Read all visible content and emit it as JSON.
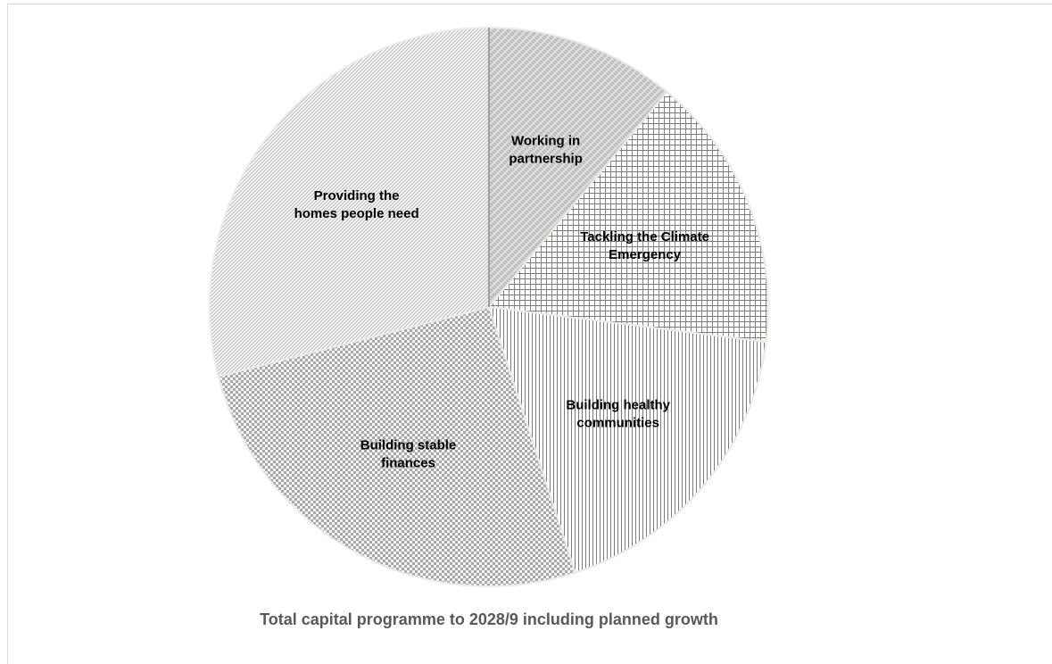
{
  "chart_data": {
    "type": "pie",
    "title": "Total capital programme to 2028/9 including planned growth",
    "slices": [
      {
        "name": "Working in partnership",
        "lines": [
          "Working in",
          "partnership"
        ],
        "value": 11,
        "pattern": "weave"
      },
      {
        "name": "Tackling the Climate Emergency",
        "lines": [
          "Tackling the Climate",
          "Emergency"
        ],
        "value": 16,
        "pattern": "grid"
      },
      {
        "name": "Building healthy communities",
        "lines": [
          "Building healthy",
          "communities"
        ],
        "value": 18,
        "pattern": "vertical"
      },
      {
        "name": "Building stable finances",
        "lines": [
          "Building stable",
          "finances"
        ],
        "value": 26,
        "pattern": "checker"
      },
      {
        "name": "Providing the homes people need",
        "lines": [
          "Providing the",
          "homes people need"
        ],
        "value": 29,
        "pattern": "diagonal"
      }
    ],
    "start_angle_deg": 0,
    "direction": "clockwise",
    "legend": "none",
    "colors": {
      "edge": "#ecebe3",
      "ink": "#555555",
      "text": "#000000",
      "caption": "#595959"
    }
  }
}
